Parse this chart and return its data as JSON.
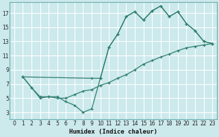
{
  "background_color": "#cce9ec",
  "grid_color": "#ffffff",
  "line_color": "#2e7d6e",
  "xlabel": "Humidex (Indice chaleur)",
  "xlim": [
    -0.5,
    23.5
  ],
  "ylim": [
    2.0,
    18.5
  ],
  "xticks": [
    0,
    1,
    2,
    3,
    4,
    5,
    6,
    7,
    8,
    9,
    10,
    11,
    12,
    13,
    14,
    15,
    16,
    17,
    18,
    19,
    20,
    21,
    22,
    23
  ],
  "yticks": [
    3,
    5,
    7,
    9,
    11,
    13,
    15,
    17
  ],
  "line1_x": [
    1,
    2,
    3,
    4,
    5,
    6,
    7,
    8,
    9,
    10,
    11,
    12,
    13,
    14,
    15,
    16,
    17,
    18,
    19,
    20,
    21,
    22,
    23
  ],
  "line1_y": [
    8.0,
    6.5,
    5.0,
    5.2,
    5.2,
    4.5,
    4.0,
    3.0,
    3.5,
    7.8,
    12.2,
    14.0,
    16.5,
    17.2,
    16.0,
    17.3,
    18.0,
    16.5,
    17.2,
    15.5,
    14.5,
    13.0,
    12.7
  ],
  "line2_x": [
    1,
    2,
    3,
    4,
    5,
    6,
    7,
    8,
    9,
    10,
    11,
    12,
    13,
    14,
    15,
    16,
    17,
    18,
    19,
    20,
    21,
    22,
    23
  ],
  "line2_y": [
    8.0,
    6.5,
    5.2,
    5.2,
    5.0,
    5.0,
    5.5,
    6.0,
    6.2,
    6.8,
    7.2,
    7.8,
    8.3,
    9.0,
    9.8,
    10.3,
    10.8,
    11.2,
    11.7,
    12.1,
    12.3,
    12.5,
    12.7
  ],
  "line3_x": [
    1,
    9,
    10,
    11,
    12,
    13,
    14,
    15,
    16,
    17,
    18,
    19,
    20,
    21,
    22,
    23
  ],
  "line3_y": [
    8.0,
    7.8,
    7.8,
    12.2,
    14.0,
    16.5,
    17.2,
    16.0,
    17.3,
    18.0,
    16.5,
    17.2,
    15.5,
    14.5,
    13.0,
    12.7
  ]
}
